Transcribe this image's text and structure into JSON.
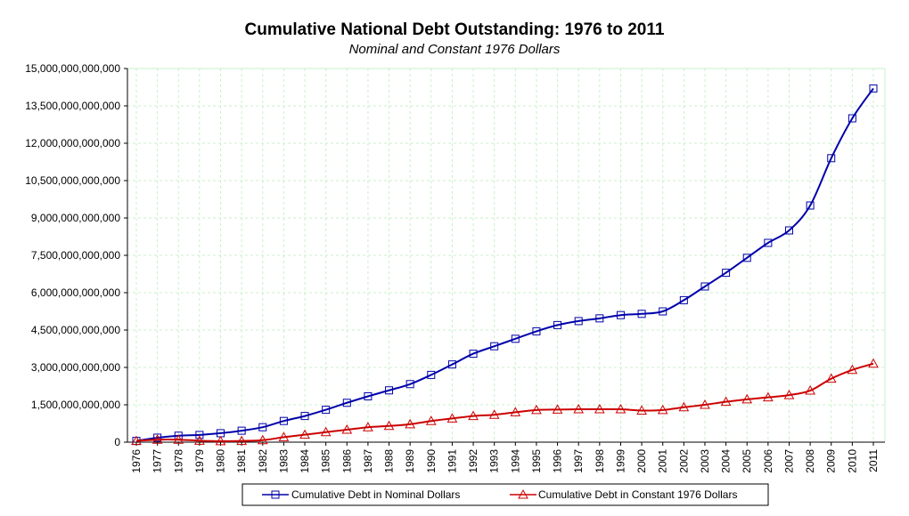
{
  "chart_data": {
    "type": "line",
    "title": "Cumulative National Debt Outstanding: 1976 to 2011",
    "subtitle": "Nominal and Constant 1976 Dollars",
    "xlabel": "",
    "ylabel": "",
    "x": [
      "1976",
      "1977",
      "1978",
      "1979",
      "1980",
      "1981",
      "1982",
      "1983",
      "1984",
      "1985",
      "1986",
      "1987",
      "1988",
      "1989",
      "1990",
      "1991",
      "1992",
      "1993",
      "1994",
      "1995",
      "1996",
      "1997",
      "1998",
      "1999",
      "2000",
      "2001",
      "2002",
      "2003",
      "2004",
      "2005",
      "2006",
      "2007",
      "2008",
      "2009",
      "2010",
      "2011"
    ],
    "ylim": [
      0,
      15000000000000
    ],
    "y_ticks": [
      0,
      1500000000000,
      3000000000000,
      4500000000000,
      6000000000000,
      7500000000000,
      9000000000000,
      10500000000000,
      12000000000000,
      13500000000000,
      15000000000000
    ],
    "y_tick_labels": [
      "0",
      "1,500,000,000,000",
      "3,000,000,000,000",
      "4,500,000,000,000",
      "6,000,000,000,000",
      "7,500,000,000,000",
      "9,000,000,000,000",
      "10,500,000,000,000",
      "12,000,000,000,000",
      "13,500,000,000,000",
      "15,000,000,000,000"
    ],
    "grid": true,
    "legend_position": "bottom",
    "series": [
      {
        "name": "Cumulative Debt in Nominal Dollars",
        "color": "#0000aa",
        "marker": "square",
        "values": [
          50000000000,
          180000000000,
          260000000000,
          290000000000,
          360000000000,
          460000000000,
          600000000000,
          850000000000,
          1050000000000,
          1300000000000,
          1580000000000,
          1840000000000,
          2080000000000,
          2330000000000,
          2700000000000,
          3120000000000,
          3550000000000,
          3850000000000,
          4150000000000,
          4450000000000,
          4700000000000,
          4860000000000,
          4970000000000,
          5100000000000,
          5150000000000,
          5250000000000,
          5700000000000,
          6250000000000,
          6800000000000,
          7400000000000,
          8000000000000,
          8500000000000,
          9500000000000,
          11400000000000,
          13000000000000,
          14200000000000
        ]
      },
      {
        "name": "Cumulative Debt in Constant 1976 Dollars",
        "color": "#cc0000",
        "marker": "triangle",
        "values": [
          50000000000,
          100000000000,
          100000000000,
          60000000000,
          40000000000,
          50000000000,
          80000000000,
          200000000000,
          300000000000,
          400000000000,
          500000000000,
          600000000000,
          650000000000,
          720000000000,
          850000000000,
          950000000000,
          1050000000000,
          1100000000000,
          1200000000000,
          1290000000000,
          1310000000000,
          1320000000000,
          1320000000000,
          1320000000000,
          1270000000000,
          1290000000000,
          1400000000000,
          1500000000000,
          1620000000000,
          1720000000000,
          1800000000000,
          1890000000000,
          2070000000000,
          2550000000000,
          2900000000000,
          3150000000000
        ]
      }
    ]
  }
}
